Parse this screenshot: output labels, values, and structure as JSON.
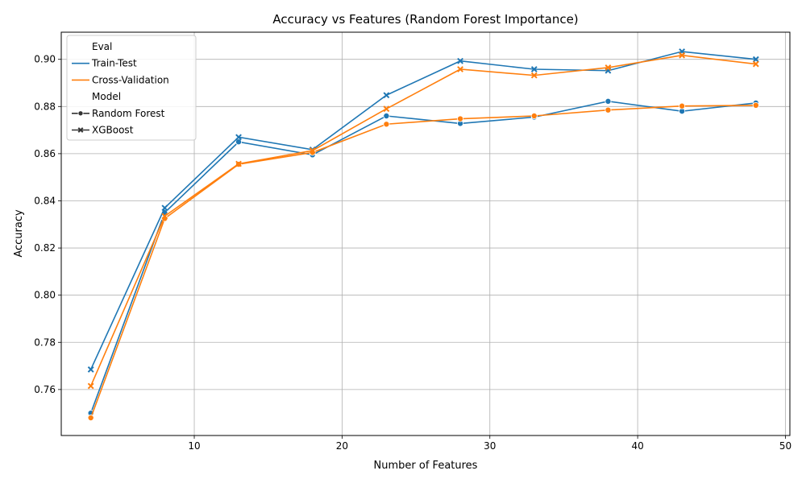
{
  "chart_data": {
    "type": "line",
    "title": "Accuracy vs Features (Random Forest Importance)",
    "xlabel": "Number of Features",
    "ylabel": "Accuracy",
    "xlim": [
      1,
      50.3
    ],
    "ylim": [
      0.7405,
      0.9115
    ],
    "x_ticks": [
      10,
      20,
      30,
      40,
      50
    ],
    "y_ticks": [
      0.76,
      0.78,
      0.8,
      0.82,
      0.84,
      0.86,
      0.88,
      0.9
    ],
    "grid": true,
    "legend_placement": "top-left",
    "legend": {
      "hue_title": "Eval",
      "hue_entries": [
        {
          "label": "Train-Test",
          "color": "#1f77b4"
        },
        {
          "label": "Cross-Validation",
          "color": "#ff7f0e"
        }
      ],
      "style_title": "Model",
      "style_entries": [
        {
          "label": "Random Forest",
          "marker": "circle"
        },
        {
          "label": "XGBoost",
          "marker": "x"
        }
      ]
    },
    "x": [
      3,
      8,
      13,
      18,
      23,
      28,
      33,
      38,
      43,
      48
    ],
    "series": [
      {
        "eval": "Train-Test",
        "model": "Random Forest",
        "color": "#1f77b4",
        "marker": "circle",
        "values": [
          0.75,
          0.835,
          0.865,
          0.8595,
          0.876,
          0.8728,
          0.8755,
          0.8822,
          0.878,
          0.8815
        ]
      },
      {
        "eval": "Train-Test",
        "model": "XGBoost",
        "color": "#1f77b4",
        "marker": "x",
        "values": [
          0.7685,
          0.837,
          0.867,
          0.8617,
          0.8848,
          0.8993,
          0.8958,
          0.8952,
          0.9033,
          0.9
        ]
      },
      {
        "eval": "Cross-Validation",
        "model": "Random Forest",
        "color": "#ff7f0e",
        "marker": "circle",
        "values": [
          0.748,
          0.8325,
          0.8555,
          0.8605,
          0.8725,
          0.8748,
          0.876,
          0.8785,
          0.8802,
          0.8805
        ]
      },
      {
        "eval": "Cross-Validation",
        "model": "XGBoost",
        "color": "#ff7f0e",
        "marker": "x",
        "values": [
          0.7615,
          0.8335,
          0.8557,
          0.8613,
          0.879,
          0.8958,
          0.8932,
          0.8965,
          0.9017,
          0.898
        ]
      }
    ]
  }
}
